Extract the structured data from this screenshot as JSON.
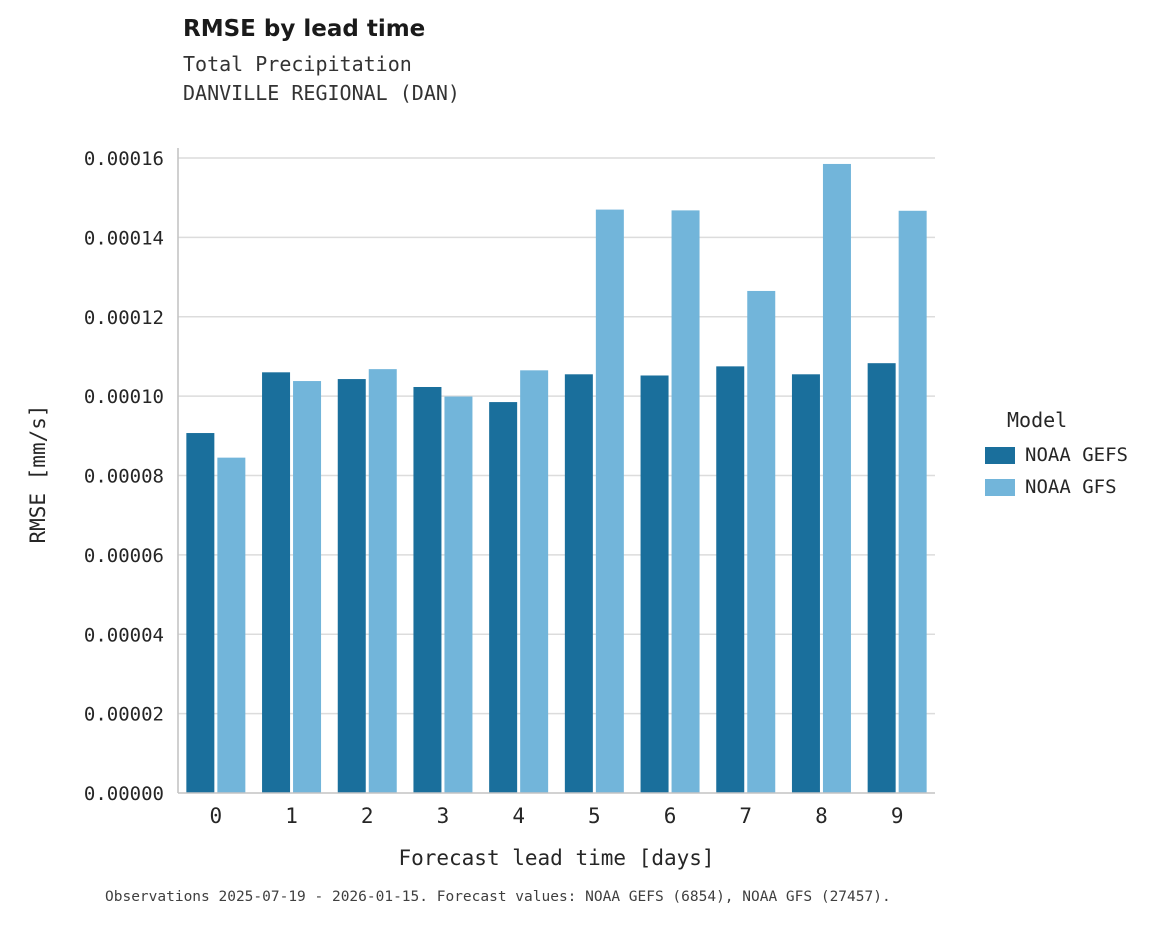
{
  "header": {
    "title": "RMSE by lead time",
    "subtitle1": "Total Precipitation",
    "subtitle2": "DANVILLE REGIONAL (DAN)"
  },
  "chart_data": {
    "type": "bar",
    "title": "RMSE by lead time",
    "subtitle": "Total Precipitation — DANVILLE REGIONAL (DAN)",
    "categories": [
      "0",
      "1",
      "2",
      "3",
      "4",
      "5",
      "6",
      "7",
      "8",
      "9"
    ],
    "series": [
      {
        "name": "NOAA GEFS",
        "color": "#1a6f9c",
        "values": [
          9.07e-05,
          0.000106,
          0.0001043,
          0.0001023,
          9.85e-05,
          0.0001055,
          0.0001052,
          0.0001075,
          0.0001055,
          0.0001083
        ]
      },
      {
        "name": "NOAA GFS",
        "color": "#72b5da",
        "values": [
          8.45e-05,
          0.0001038,
          0.0001068,
          9.99e-05,
          0.0001065,
          0.000147,
          0.0001468,
          0.0001265,
          0.0001585,
          0.0001467
        ]
      }
    ],
    "xlabel": "Forecast lead time [days]",
    "ylabel": "RMSE [mm/s]",
    "ylim": [
      0,
      0.00016
    ],
    "ytick_step": 2e-05,
    "ytick_decimals": 5,
    "grid": true,
    "legend": {
      "title": "Model",
      "position": "right"
    }
  },
  "caption": "Observations 2025-07-19 - 2026-01-15. Forecast values: NOAA GEFS (6854), NOAA GFS (27457)."
}
